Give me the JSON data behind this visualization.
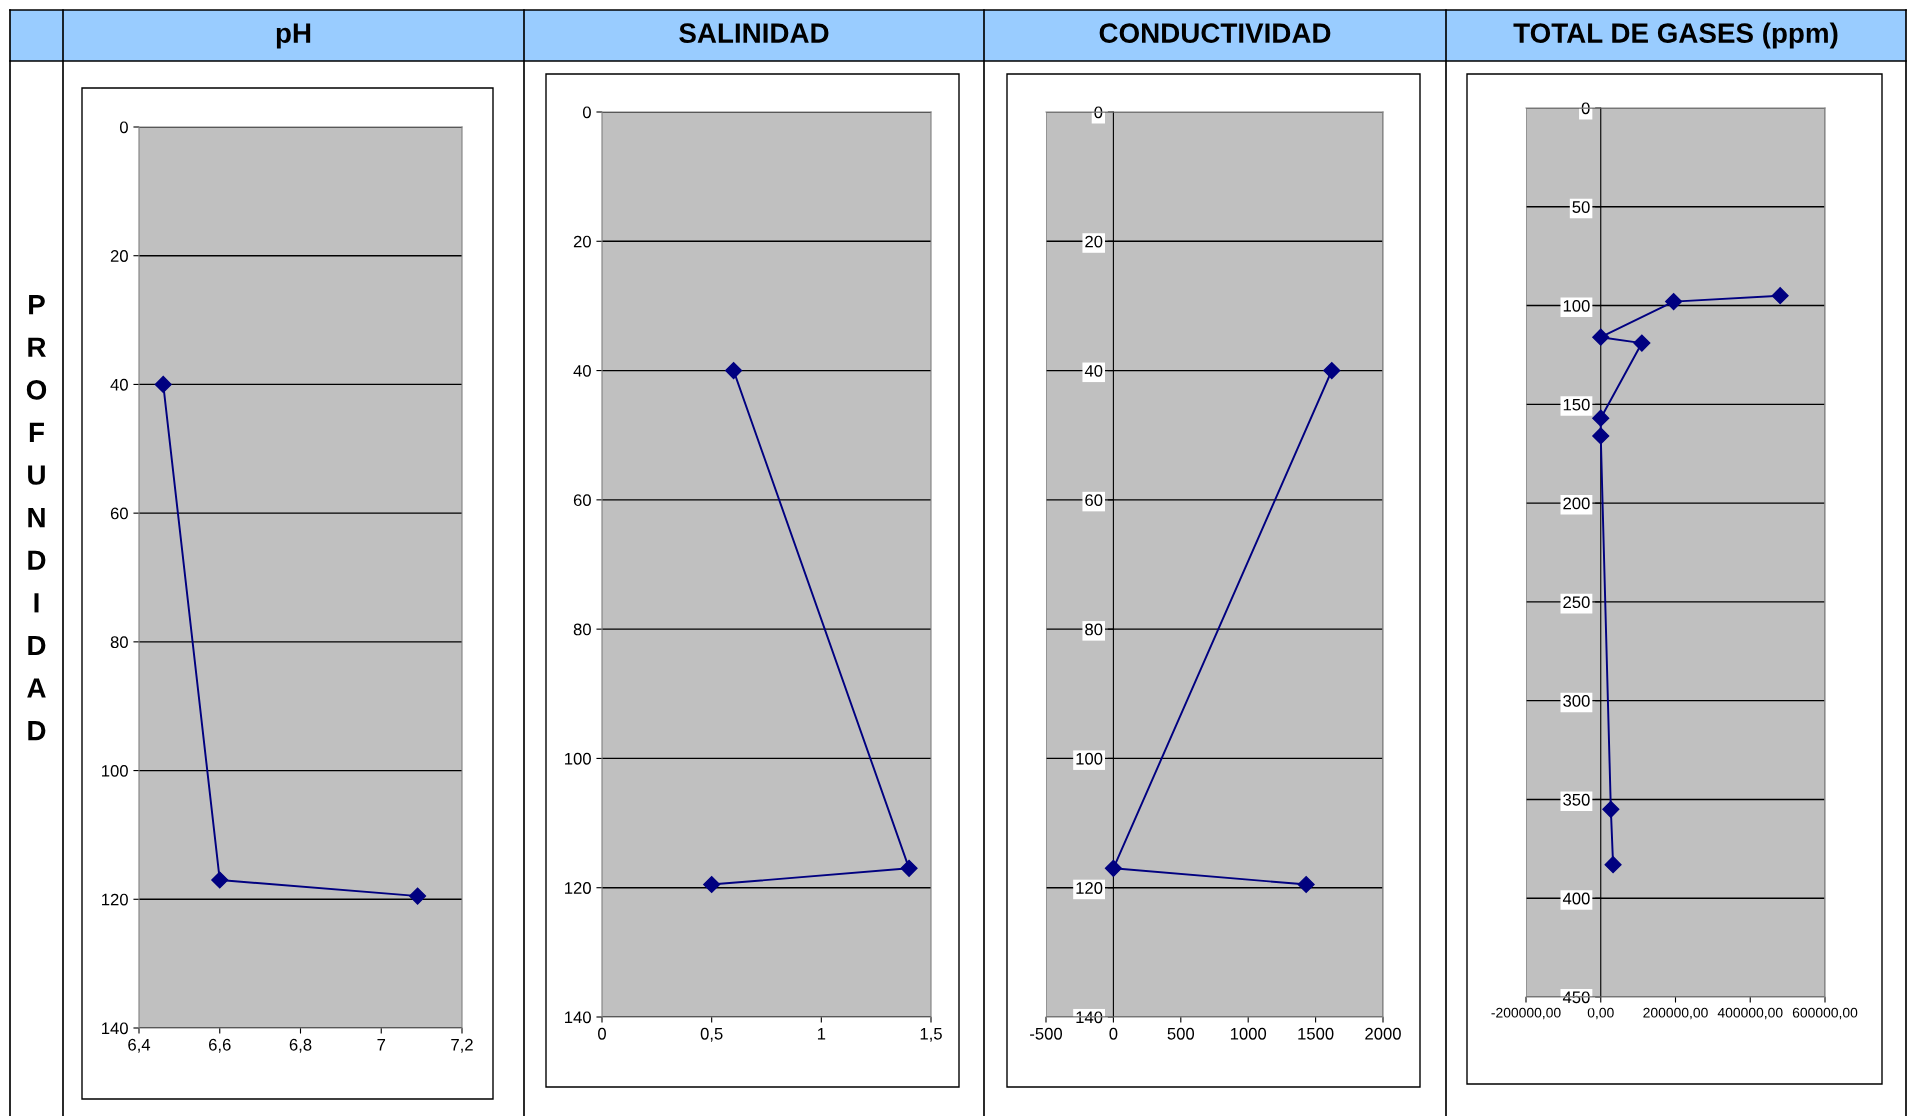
{
  "chart_data": [
    {
      "type": "line",
      "title": "pH",
      "ylabel": "PROFUNDIDAD",
      "xlim": [
        6.4,
        7.2
      ],
      "xticks": [
        {
          "value": 6.4,
          "label": "6,4"
        },
        {
          "value": 6.6,
          "label": "6,6"
        },
        {
          "value": 6.8,
          "label": "6,8"
        },
        7,
        {
          "value": 7.2,
          "label": "7,2"
        }
      ],
      "ylim": [
        140,
        0
      ],
      "yticks": [
        0,
        20,
        40,
        60,
        80,
        100,
        120,
        140
      ],
      "grid": "y",
      "marker": "diamond",
      "line_style": "solid",
      "series": [
        {
          "color": "#000080",
          "x": [
            6.46,
            6.6,
            7.09
          ],
          "values": [
            40,
            117,
            119.5
          ]
        }
      ]
    },
    {
      "type": "line",
      "title": "SALINIDAD",
      "xlim": [
        0,
        1.5
      ],
      "xticks": [
        0,
        {
          "value": 0.5,
          "label": "0,5"
        },
        1,
        {
          "value": 1.5,
          "label": "1,5"
        }
      ],
      "ylim": [
        140,
        0
      ],
      "yticks": [
        0,
        20,
        40,
        60,
        80,
        100,
        120,
        140
      ],
      "grid": "y",
      "marker": "diamond",
      "line_style": "solid",
      "series": [
        {
          "color": "#000080",
          "x": [
            0.6,
            1.4,
            0.5
          ],
          "values": [
            40,
            117,
            119.5
          ]
        }
      ]
    },
    {
      "type": "line",
      "title": "CONDUCTIVIDAD",
      "xlim": [
        -500,
        2000
      ],
      "xticks": [
        -500,
        0,
        500,
        1000,
        1500,
        2000
      ],
      "ylim": [
        140,
        0
      ],
      "yticks": [
        0,
        20,
        40,
        60,
        80,
        100,
        120,
        140
      ],
      "grid": "y",
      "marker": "diamond",
      "line_style": "solid",
      "series": [
        {
          "color": "#000080",
          "x": [
            1620,
            0,
            1430
          ],
          "values": [
            40,
            117,
            119.5
          ]
        }
      ]
    },
    {
      "type": "line",
      "title": "TOTAL DE GASES (ppm)",
      "xlim": [
        -200000,
        600000
      ],
      "xticks": [
        {
          "value": -200000,
          "label": "-200000,00"
        },
        {
          "value": 0,
          "label": "0,00"
        },
        {
          "value": 200000,
          "label": "200000,00"
        },
        {
          "value": 400000,
          "label": "400000,00"
        },
        {
          "value": 600000,
          "label": "600000,00"
        }
      ],
      "ylim": [
        450,
        0
      ],
      "yticks": [
        0,
        50,
        100,
        150,
        200,
        250,
        300,
        350,
        400,
        450
      ],
      "grid": "y",
      "marker": "diamond",
      "line_style": "solid",
      "series": [
        {
          "color": "#000080",
          "x": [
            480000,
            195000,
            0,
            110000,
            0,
            0,
            27000,
            33000
          ],
          "values": [
            95,
            98,
            116,
            119,
            157,
            166,
            355,
            383
          ]
        }
      ]
    }
  ]
}
